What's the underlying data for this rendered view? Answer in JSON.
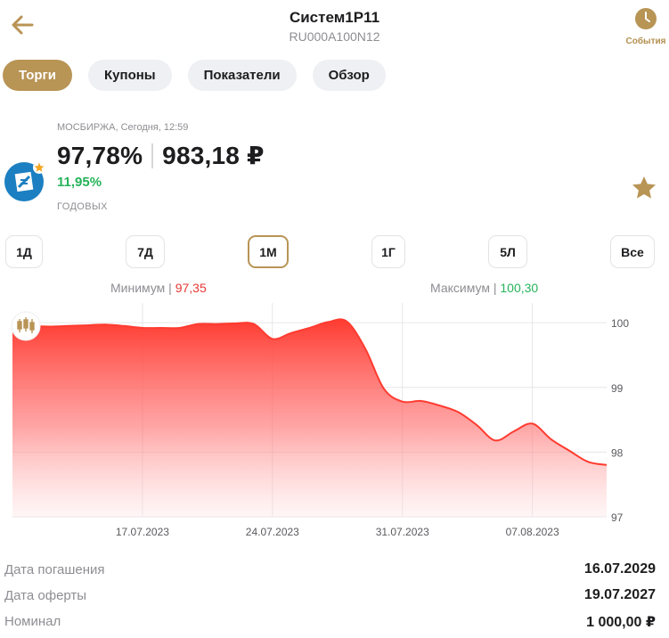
{
  "header": {
    "title": "Систем1P11",
    "subtitle": "RU000A100N12",
    "events_label": "События",
    "accent_color": "#b89455"
  },
  "tabs": [
    {
      "label": "Торги",
      "active": true
    },
    {
      "label": "Купоны",
      "active": false
    },
    {
      "label": "Показатели",
      "active": false
    },
    {
      "label": "Обзор",
      "active": false
    }
  ],
  "quote": {
    "exchange": "МОСБИРЖА, Сегодня, 12:59",
    "price_percent": "97,78%",
    "price_rub": "983,18 ₽",
    "yield": "11,95%",
    "yield_label": "ГОДОВЫХ",
    "yield_color": "#25b35a"
  },
  "periods": [
    {
      "label": "1Д",
      "active": false
    },
    {
      "label": "7Д",
      "active": false
    },
    {
      "label": "1М",
      "active": true
    },
    {
      "label": "1Г",
      "active": false
    },
    {
      "label": "5Л",
      "active": false
    },
    {
      "label": "Все",
      "active": false
    }
  ],
  "minmax": {
    "min_label": "Минимум",
    "min_value": "97,35",
    "max_label": "Максимум",
    "max_value": "100,30"
  },
  "chart_data": {
    "type": "area",
    "title": "",
    "xlabel": "",
    "ylabel": "",
    "x_ticks": [
      "17.07.2023",
      "24.07.2023",
      "31.07.2023",
      "07.08.2023"
    ],
    "y_ticks": [
      "100",
      "99",
      "98",
      "97"
    ],
    "ylim": [
      97,
      100.25
    ],
    "x_range_days": [
      0,
      32
    ],
    "x_tick_days": [
      7,
      14,
      21,
      28
    ],
    "grid": true,
    "color": "#ff3b30",
    "series": [
      {
        "x_days": [
          0,
          1,
          2,
          3,
          4,
          5,
          6,
          7,
          8,
          9,
          10,
          11,
          12,
          13,
          14,
          15,
          16,
          17,
          18,
          19,
          20,
          21,
          22,
          23,
          24,
          25,
          26,
          27,
          28,
          29,
          30,
          31,
          32
        ],
        "values": [
          99.98,
          99.95,
          99.94,
          99.95,
          99.96,
          99.97,
          99.95,
          99.92,
          99.92,
          99.92,
          99.98,
          99.98,
          99.99,
          99.98,
          99.75,
          99.84,
          99.92,
          100.01,
          100.02,
          99.6,
          98.98,
          98.78,
          98.79,
          98.72,
          98.62,
          98.42,
          98.18,
          98.32,
          98.44,
          98.2,
          98.02,
          97.85,
          97.8
        ]
      }
    ]
  },
  "properties": [
    {
      "label": "Дата погашения",
      "value": "16.07.2029"
    },
    {
      "label": "Дата оферты",
      "value": "19.07.2027"
    },
    {
      "label": "Номинал",
      "value": "1 000,00 ₽"
    }
  ]
}
